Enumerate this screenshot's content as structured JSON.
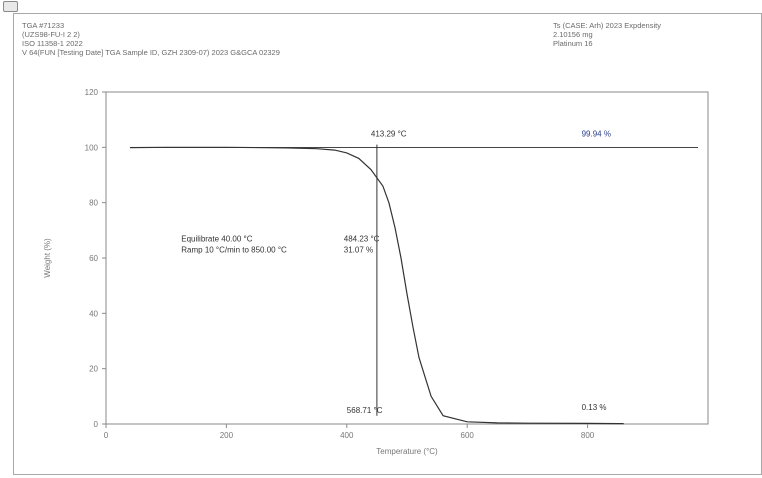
{
  "window": {
    "icon": "chart-app-icon"
  },
  "header": {
    "left_lines": [
      "TGA #71233",
      "(UZS98-FU-I 2 2)",
      "ISO 11358-1 2022",
      "V 64(FUN [Testing Date] TGA Sample ID, GZH 2309-07) 2023 G&GCA 02329"
    ],
    "right_lines": [
      "Ts (CASE: Arh) 2023 Expdensity",
      "2.10156 mg",
      "Platinum 16"
    ]
  },
  "chart_data": {
    "type": "line",
    "xlabel": "Temperature (°C)",
    "ylabel": "Weight (%)",
    "xlim": [
      0,
      1000
    ],
    "ylim": [
      0,
      120
    ],
    "xticks": [
      0,
      200,
      400,
      600,
      800
    ],
    "yticks": [
      0,
      20,
      40,
      60,
      80,
      100,
      120
    ],
    "xtick_labels": [
      "0",
      "200",
      "400",
      "600",
      "800"
    ],
    "ytick_labels": [
      "0",
      "20",
      "40",
      "60",
      "80",
      "100",
      "120"
    ],
    "grid": false,
    "series": [
      {
        "x": [
          40,
          100,
          200,
          300,
          350,
          380,
          400,
          420,
          440,
          460,
          470,
          480,
          490,
          500,
          510,
          520,
          540,
          560,
          600,
          650,
          700,
          800,
          850,
          860
        ],
        "y": [
          99.9,
          100,
          100,
          99.8,
          99.5,
          99,
          98,
          96,
          92,
          86,
          80,
          71,
          60,
          47,
          35,
          24,
          10,
          3,
          0.8,
          0.4,
          0.3,
          0.2,
          0.13,
          0.13
        ]
      }
    ],
    "reference_line": {
      "y": 99.94
    },
    "annotations": [
      {
        "text": "413.29 °C",
        "x": 440,
        "y": 104
      },
      {
        "text": "99.94 %",
        "x": 790,
        "y": 104
      },
      {
        "text": "Equilibrate 40.00 °C",
        "x": 125,
        "y": 66
      },
      {
        "text": "Ramp 10 °C/min to 850.00 °C",
        "x": 125,
        "y": 62
      },
      {
        "text": "484.23 °C",
        "x": 395,
        "y": 66
      },
      {
        "text": "31.07 %",
        "x": 395,
        "y": 62
      },
      {
        "text": "568.71 °C",
        "x": 400,
        "y": 4
      },
      {
        "text": "0.13 %",
        "x": 790,
        "y": 5
      }
    ]
  },
  "colors": {
    "curve": "#333333",
    "reference_line": "#444444",
    "axis": "#8a8a8a",
    "accent_blue": "#2a3f8a"
  }
}
